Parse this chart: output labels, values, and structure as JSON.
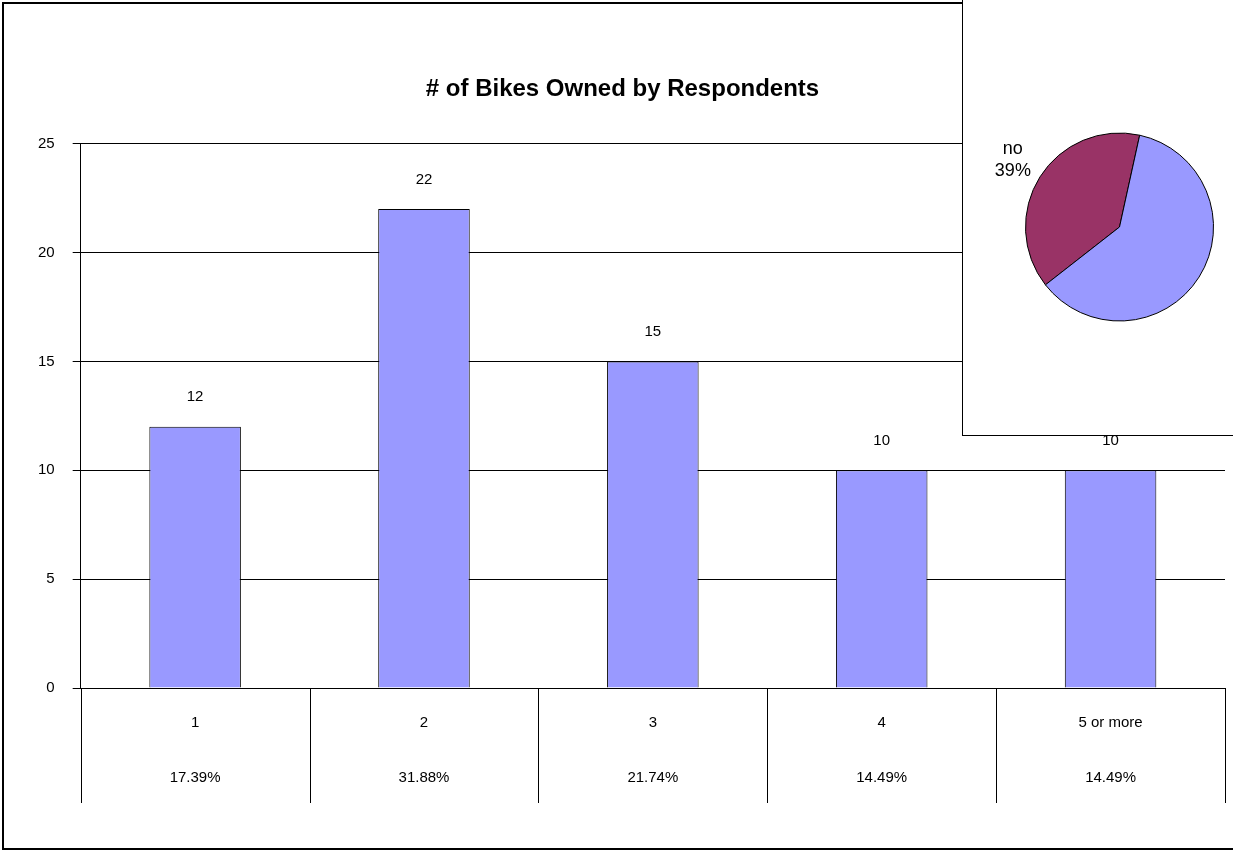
{
  "chart_data": [
    {
      "type": "bar",
      "title": "# of Bikes Owned by Respondents",
      "categories": [
        "1",
        "2",
        "3",
        "4",
        "5 or more"
      ],
      "values": [
        12,
        22,
        15,
        10,
        10
      ],
      "color": "#9999ff",
      "ylim": [
        0,
        25
      ],
      "yticks": [
        0,
        5,
        10,
        15,
        20,
        25
      ],
      "grid": "y",
      "data_labels": true,
      "legend": false,
      "annotations": [
        "17.39%",
        "31.88%",
        "21.74%",
        "14.49%",
        "14.49%"
      ]
    },
    {
      "type": "pie",
      "categories": [
        "no",
        null
      ],
      "values": [
        39,
        61
      ],
      "colors": [
        "#993366",
        "#9999ff"
      ],
      "value_labels": [
        "39%",
        null
      ],
      "legend": false
    }
  ]
}
